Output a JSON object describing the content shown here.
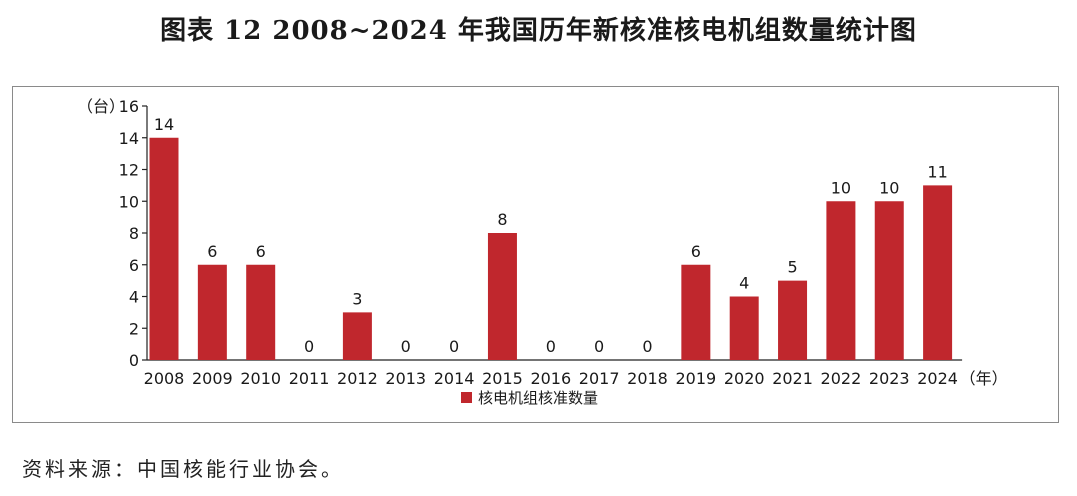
{
  "title": "图表 12  2008~2024 年我国历年新核准核电机组数量统计图",
  "source": "资料来源：中国核能行业协会。",
  "colors": {
    "bar": "#c0272d",
    "axis": "#222222",
    "frame": "#8a8a8a"
  },
  "chart_data": {
    "type": "bar",
    "categories": [
      "2008",
      "2009",
      "2010",
      "2011",
      "2012",
      "2013",
      "2014",
      "2015",
      "2016",
      "2017",
      "2018",
      "2019",
      "2020",
      "2021",
      "2022",
      "2023",
      "2024"
    ],
    "series": [
      {
        "name": "核电机组核准数量",
        "values": [
          14,
          6,
          6,
          0,
          3,
          0,
          0,
          8,
          0,
          0,
          0,
          6,
          4,
          5,
          10,
          10,
          11
        ]
      }
    ],
    "y_unit": "（台）",
    "x_unit": "（年）",
    "ylim": [
      0,
      16
    ],
    "yticks": [
      0,
      2,
      4,
      6,
      8,
      10,
      12,
      14,
      16
    ],
    "data_labels": true,
    "grid": false,
    "legend_position": "bottom"
  }
}
